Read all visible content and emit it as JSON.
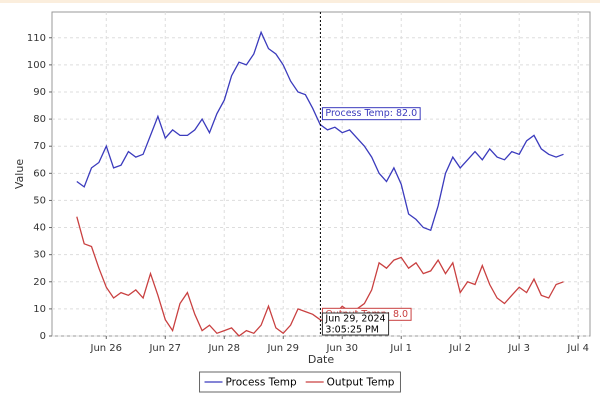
{
  "chart_data": {
    "type": "line",
    "x_label": "Date",
    "y_label": "Value",
    "x": [
      25.5,
      25.625,
      25.75,
      25.875,
      26,
      26.125,
      26.25,
      26.375,
      26.5,
      26.625,
      26.75,
      26.875,
      27,
      27.125,
      27.25,
      27.375,
      27.5,
      27.625,
      27.75,
      27.875,
      28,
      28.125,
      28.25,
      28.375,
      28.5,
      28.625,
      28.75,
      28.875,
      29,
      29.125,
      29.25,
      29.375,
      29.5,
      29.625,
      29.75,
      29.875,
      30,
      30.125,
      30.25,
      30.375,
      30.5,
      30.625,
      30.75,
      30.875,
      31,
      31.125,
      31.25,
      31.375,
      31.5,
      31.625,
      31.75,
      31.875,
      32,
      32.125,
      32.25,
      32.375,
      32.5,
      32.625,
      32.75,
      32.875,
      33,
      33.125,
      33.25,
      33.375,
      33.5,
      33.625,
      33.75
    ],
    "series": [
      {
        "name": "Process Temp",
        "color": "#3b3bbd",
        "values": [
          57,
          55,
          62,
          64,
          70,
          62,
          63,
          68,
          66,
          67,
          74,
          81,
          73,
          76,
          74,
          74,
          76,
          80,
          75,
          82,
          87,
          96,
          101,
          100,
          104,
          112,
          106,
          104,
          100,
          94,
          90,
          89,
          84,
          78,
          76,
          77,
          75,
          76,
          73,
          70,
          66,
          60,
          57,
          62,
          56,
          45,
          43,
          40,
          39,
          48,
          60,
          66,
          62,
          65,
          68,
          65,
          69,
          66,
          65,
          68,
          67,
          72,
          74,
          69,
          67,
          66,
          67
        ]
      },
      {
        "name": "Output Temp",
        "color": "#c94040",
        "values": [
          44,
          34,
          33,
          25,
          18,
          14,
          16,
          15,
          17,
          14,
          23,
          15,
          6,
          2,
          12,
          16,
          8,
          2,
          4,
          1,
          2,
          3,
          0,
          2,
          1,
          4,
          11,
          3,
          1,
          4,
          10,
          9,
          8,
          6,
          5,
          8,
          11,
          9,
          10,
          12,
          17,
          27,
          25,
          28,
          29,
          25,
          27,
          23,
          24,
          28,
          23,
          27,
          16,
          20,
          19,
          26,
          19,
          14,
          12,
          15,
          18,
          16,
          21,
          15,
          14,
          19,
          20
        ]
      }
    ],
    "xlim": [
      25.08,
      34.2
    ],
    "ylim": [
      0,
      119.5
    ],
    "xticks": [
      {
        "value": 26,
        "label": "Jun 26"
      },
      {
        "value": 27,
        "label": "Jun 27"
      },
      {
        "value": 28,
        "label": "Jun 28"
      },
      {
        "value": 29,
        "label": "Jun 29"
      },
      {
        "value": 30,
        "label": "Jun 30"
      },
      {
        "value": 31,
        "label": "Jul 1"
      },
      {
        "value": 32,
        "label": "Jul 2"
      },
      {
        "value": 33,
        "label": "Jul 3"
      },
      {
        "value": 34,
        "label": "Jul 4"
      }
    ],
    "yticks": [
      0,
      10,
      20,
      30,
      40,
      50,
      60,
      70,
      80,
      90,
      100,
      110
    ],
    "grid": true,
    "legend": "bottom",
    "crosshair": {
      "x": 29.63,
      "date": "Jun 29, 2024",
      "time": "3:05:25 PM",
      "readouts": [
        {
          "label": "Process Temp: 82.0",
          "value": 82,
          "color": "#3b3bbd"
        },
        {
          "label": "Output Temp: 8.0",
          "value": 8,
          "color": "#c94040"
        }
      ]
    }
  }
}
